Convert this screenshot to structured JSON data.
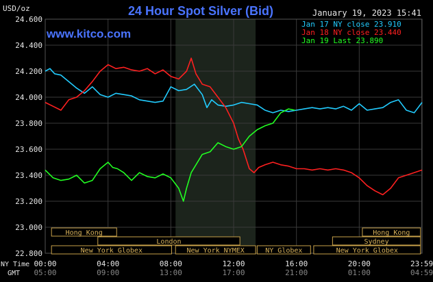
{
  "chart_data": {
    "type": "line",
    "title": "24 Hour Spot Silver (Bid)",
    "unit_label": "USD/oz",
    "site": "www.kitco.com",
    "timestamp": "January 19, 2023 15:41",
    "ylim": [
      22.8,
      24.6
    ],
    "yticks": [
      "24.600",
      "24.400",
      "24.200",
      "24.000",
      "23.800",
      "23.600",
      "23.400",
      "23.200",
      "23.000",
      "22.800"
    ],
    "ytick_values": [
      24.6,
      24.4,
      24.2,
      24.0,
      23.8,
      23.6,
      23.4,
      23.2,
      23.0,
      22.8
    ],
    "xlim": [
      0,
      24
    ],
    "xticks_ny": [
      "00:00",
      "04:00",
      "08:00",
      "12:00",
      "16:00",
      "20:00",
      "23:59"
    ],
    "xticks_gmt": [
      "05:00",
      "09:00",
      "13:00",
      "17:00",
      "21:00",
      "01:00",
      "04:59"
    ],
    "xtick_hours": [
      0,
      4,
      8,
      12,
      16,
      20,
      23.98
    ],
    "row_label_ny": "NY Time",
    "row_label_gmt": "GMT",
    "shaded_region": [
      8.3,
      13.4
    ],
    "grid": true,
    "legend_position": "top-right",
    "series": [
      {
        "name": "Jan 17 NY close 23.910",
        "color": "#22ccff",
        "x": [
          0,
          0.3,
          0.6,
          1,
          1.5,
          2,
          2.5,
          3,
          3.5,
          4,
          4.5,
          5,
          5.5,
          6,
          6.5,
          7,
          7.5,
          8,
          8.5,
          9,
          9.5,
          10,
          10.3,
          10.6,
          11,
          11.5,
          12,
          12.5,
          13,
          13.5,
          14,
          14.5,
          15,
          15.5,
          16,
          16.5,
          17,
          17.5,
          18,
          18.5,
          19,
          19.5,
          20,
          20.5,
          21,
          21.5,
          22,
          22.5,
          23,
          23.5,
          24
        ],
        "y": [
          24.2,
          24.22,
          24.18,
          24.17,
          24.12,
          24.07,
          24.03,
          24.08,
          24.02,
          24.0,
          24.03,
          24.02,
          24.01,
          23.98,
          23.97,
          23.96,
          23.97,
          24.08,
          24.05,
          24.06,
          24.1,
          24.02,
          23.92,
          23.98,
          23.94,
          23.93,
          23.94,
          23.96,
          23.95,
          23.94,
          23.9,
          23.88,
          23.9,
          23.89,
          23.9,
          23.91,
          23.92,
          23.91,
          23.92,
          23.91,
          23.93,
          23.9,
          23.95,
          23.9,
          23.91,
          23.92,
          23.96,
          23.98,
          23.9,
          23.88,
          23.96
        ]
      },
      {
        "name": "Jan 18 NY close 23.440",
        "color": "#ff2020",
        "x": [
          0,
          0.5,
          1,
          1.5,
          2,
          2.5,
          3,
          3.5,
          4,
          4.5,
          5,
          5.5,
          6,
          6.5,
          7,
          7.5,
          8,
          8.5,
          9,
          9.3,
          9.6,
          10,
          10.5,
          11,
          11.5,
          12,
          12.3,
          12.6,
          13,
          13.3,
          13.6,
          14,
          14.5,
          15,
          15.5,
          16,
          16.5,
          17,
          17.5,
          18,
          18.5,
          19,
          19.5,
          20,
          20.5,
          21,
          21.5,
          22,
          22.5,
          23,
          23.5,
          24
        ],
        "y": [
          23.96,
          23.93,
          23.9,
          23.98,
          24.0,
          24.05,
          24.12,
          24.2,
          24.25,
          24.22,
          24.23,
          24.21,
          24.2,
          24.22,
          24.18,
          24.21,
          24.16,
          24.14,
          24.2,
          24.3,
          24.18,
          24.1,
          24.08,
          24.0,
          23.92,
          23.8,
          23.68,
          23.6,
          23.45,
          23.42,
          23.46,
          23.48,
          23.5,
          23.48,
          23.47,
          23.45,
          23.45,
          23.44,
          23.45,
          23.44,
          23.45,
          23.44,
          23.42,
          23.38,
          23.32,
          23.28,
          23.25,
          23.3,
          23.38,
          23.4,
          23.42,
          23.44
        ]
      },
      {
        "name": "Jan 19 Last 23.890",
        "color": "#22ff22",
        "x": [
          0,
          0.5,
          1,
          1.5,
          2,
          2.5,
          3,
          3.5,
          4,
          4.3,
          4.6,
          5,
          5.5,
          6,
          6.5,
          7,
          7.5,
          8,
          8.5,
          8.8,
          9,
          9.3,
          9.6,
          10,
          10.5,
          11,
          11.5,
          12,
          12.5,
          13,
          13.5,
          14,
          14.5,
          15,
          15.5,
          15.9
        ],
        "y": [
          23.44,
          23.38,
          23.36,
          23.37,
          23.4,
          23.34,
          23.36,
          23.45,
          23.5,
          23.46,
          23.45,
          23.42,
          23.36,
          23.42,
          23.39,
          23.38,
          23.41,
          23.38,
          23.3,
          23.2,
          23.3,
          23.42,
          23.48,
          23.56,
          23.58,
          23.65,
          23.62,
          23.6,
          23.62,
          23.7,
          23.75,
          23.78,
          23.8,
          23.88,
          23.91,
          23.9
        ]
      }
    ],
    "session_rows": [
      [
        {
          "label": "Hong Kong",
          "start": 0.4,
          "end": 4.55
        },
        {
          "label": "Hong Kong",
          "start": 20.2,
          "end": 23.9
        }
      ],
      [
        {
          "label": "London",
          "start": 3.35,
          "end": 12.4
        },
        {
          "label": "Sydney",
          "start": 18.3,
          "end": 23.9
        }
      ],
      [
        {
          "label": "New York Globex",
          "start": 0.4,
          "end": 8.05
        },
        {
          "label": "New York NYMEX",
          "start": 8.3,
          "end": 13.4
        },
        {
          "label": "NY Globex",
          "start": 13.5,
          "end": 16.9
        },
        {
          "label": "New York Globex",
          "start": 17.1,
          "end": 23.9
        }
      ]
    ]
  }
}
